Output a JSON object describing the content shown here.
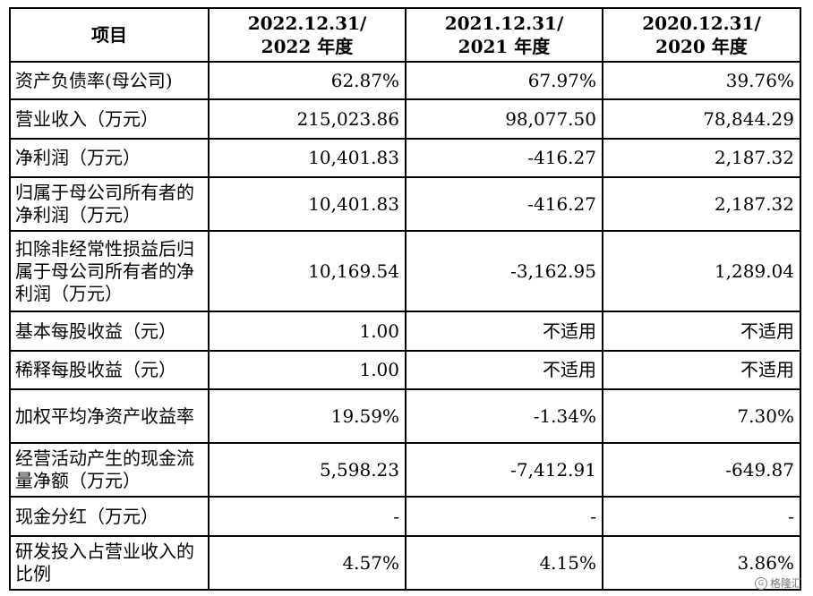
{
  "table": {
    "headers": [
      {
        "line1": "项目",
        "line2": ""
      },
      {
        "line1": "2022.12.31/",
        "line2": "2022 年度"
      },
      {
        "line1": "2021.12.31/",
        "line2": "2021 年度"
      },
      {
        "line1": "2020.12.31/",
        "line2": "2020 年度"
      }
    ],
    "rows": [
      {
        "label": "资产负债率(母公司)",
        "v2022": "62.87%",
        "v2021": "67.97%",
        "v2020": "39.76%"
      },
      {
        "label": "营业收入（万元）",
        "v2022": "215,023.86",
        "v2021": "98,077.50",
        "v2020": "78,844.29"
      },
      {
        "label": "净利润（万元）",
        "v2022": "10,401.83",
        "v2021": "-416.27",
        "v2020": "2,187.32"
      },
      {
        "label": "归属于母公司所有者的净利润（万元）",
        "v2022": "10,401.83",
        "v2021": "-416.27",
        "v2020": "2,187.32"
      },
      {
        "label": "扣除非经常性损益后归属于母公司所有者的净利润（万元）",
        "v2022": "10,169.54",
        "v2021": "-3,162.95",
        "v2020": "1,289.04"
      },
      {
        "label": "基本每股收益（元）",
        "v2022": "1.00",
        "v2021": "不适用",
        "v2020": "不适用"
      },
      {
        "label": "稀释每股收益（元）",
        "v2022": "1.00",
        "v2021": "不适用",
        "v2020": "不适用"
      },
      {
        "label": "加权平均净资产收益率",
        "v2022": "19.59%",
        "v2021": "-1.34%",
        "v2020": "7.30%"
      },
      {
        "label": "经营活动产生的现金流量净额（万元）",
        "v2022": "5,598.23",
        "v2021": "-7,412.91",
        "v2020": "-649.87"
      },
      {
        "label": "现金分红（万元）",
        "v2022": "-",
        "v2021": "-",
        "v2020": "-"
      },
      {
        "label": "研发投入占营业收入的比例",
        "v2022": "4.57%",
        "v2021": "4.15%",
        "v2020": "3.86%"
      }
    ]
  },
  "watermark": {
    "text": "格隆汇",
    "icon": "g-logo-icon"
  }
}
